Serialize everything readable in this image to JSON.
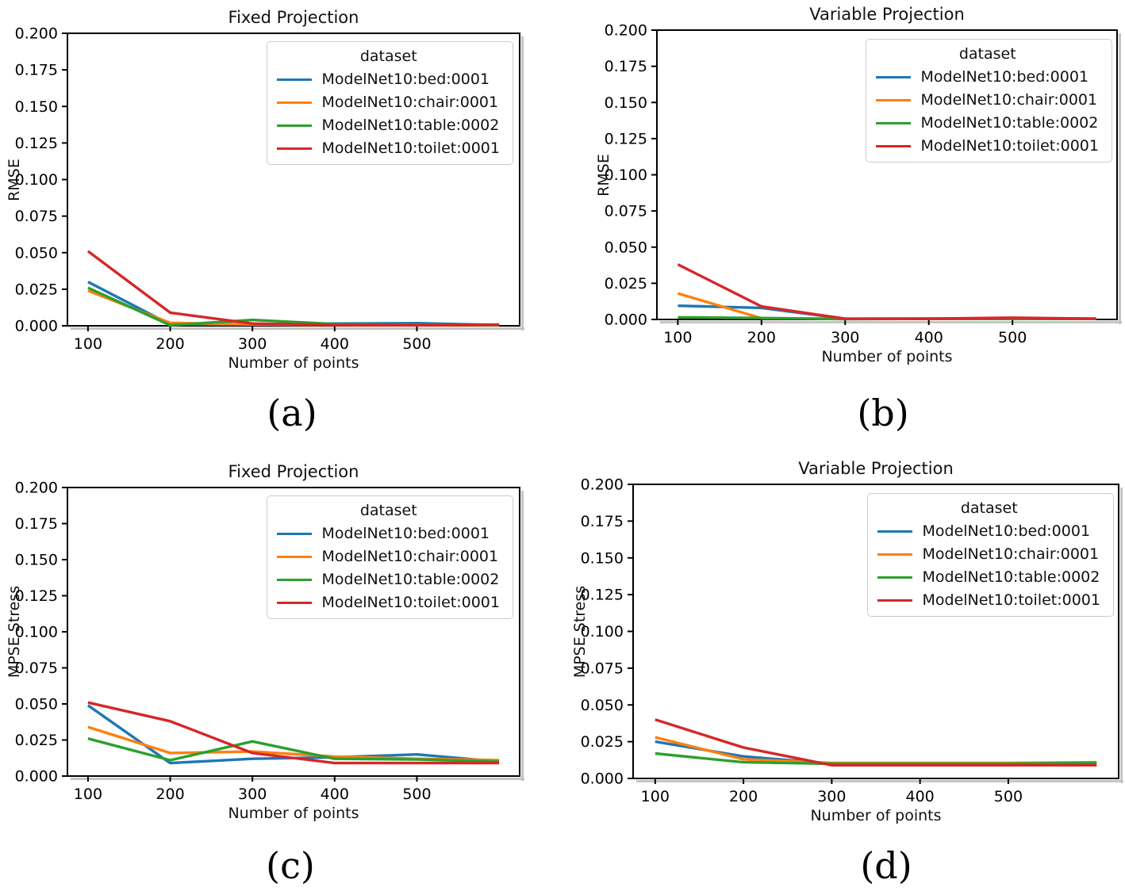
{
  "figure": {
    "background": "#ffffff",
    "text_color": "#000000",
    "spine_color": "#000000",
    "shadow_color": "#c4c4c4"
  },
  "chart_data": [
    {
      "id": "a",
      "type": "line",
      "caption": "(a)",
      "title": "Fixed Projection",
      "xlabel": "Number of points",
      "ylabel": "RMSE",
      "legend_title": "dataset",
      "legend_position": "upper right",
      "grid": false,
      "x": [
        100,
        200,
        300,
        400,
        500,
        600
      ],
      "xlim": [
        75,
        625
      ],
      "ylim": [
        0.0,
        0.2
      ],
      "xticks": [
        100,
        200,
        300,
        400,
        500
      ],
      "yticks": [
        0.0,
        0.025,
        0.05,
        0.075,
        0.1,
        0.125,
        0.15,
        0.175,
        0.2
      ],
      "series": [
        {
          "name": "ModelNet10:bed:0001",
          "color": "#1f77b4",
          "values": [
            0.03,
            0.001,
            0.001,
            0.0015,
            0.0018,
            0.0005
          ]
        },
        {
          "name": "ModelNet10:chair:0001",
          "color": "#ff7f0e",
          "values": [
            0.024,
            0.002,
            0.001,
            0.0006,
            0.0005,
            0.0005
          ]
        },
        {
          "name": "ModelNet10:table:0002",
          "color": "#2ca02c",
          "values": [
            0.026,
            0.0004,
            0.004,
            0.0012,
            0.0008,
            0.0005
          ]
        },
        {
          "name": "ModelNet10:toilet:0001",
          "color": "#d62728",
          "values": [
            0.051,
            0.009,
            0.0015,
            0.0006,
            0.0005,
            0.0008
          ]
        }
      ]
    },
    {
      "id": "b",
      "type": "line",
      "caption": "(b)",
      "title": "Variable Projection",
      "xlabel": "Number of points",
      "ylabel": "RMSE",
      "legend_title": "dataset",
      "legend_position": "upper right",
      "grid": false,
      "x": [
        100,
        200,
        300,
        400,
        500,
        600
      ],
      "xlim": [
        75,
        625
      ],
      "ylim": [
        0.0,
        0.2
      ],
      "xticks": [
        100,
        200,
        300,
        400,
        500
      ],
      "yticks": [
        0.0,
        0.025,
        0.05,
        0.075,
        0.1,
        0.125,
        0.15,
        0.175,
        0.2
      ],
      "series": [
        {
          "name": "ModelNet10:bed:0001",
          "color": "#1f77b4",
          "values": [
            0.0095,
            0.008,
            0.0005,
            0.0004,
            0.0004,
            0.0004
          ]
        },
        {
          "name": "ModelNet10:chair:0001",
          "color": "#ff7f0e",
          "values": [
            0.018,
            0.0008,
            0.0005,
            0.0007,
            0.0005,
            0.0007
          ]
        },
        {
          "name": "ModelNet10:table:0002",
          "color": "#2ca02c",
          "values": [
            0.0015,
            0.001,
            0.0003,
            0.0004,
            0.0004,
            0.0004
          ]
        },
        {
          "name": "ModelNet10:toilet:0001",
          "color": "#d62728",
          "values": [
            0.038,
            0.009,
            0.0005,
            0.0005,
            0.0012,
            0.0005
          ]
        }
      ]
    },
    {
      "id": "c",
      "type": "line",
      "caption": "(c)",
      "title": "Fixed Projection",
      "xlabel": "Number of points",
      "ylabel": "MPSE Stress",
      "legend_title": "dataset",
      "legend_position": "upper right",
      "grid": false,
      "x": [
        100,
        200,
        300,
        400,
        500,
        600
      ],
      "xlim": [
        75,
        625
      ],
      "ylim": [
        0.0,
        0.2
      ],
      "xticks": [
        100,
        200,
        300,
        400,
        500
      ],
      "yticks": [
        0.0,
        0.025,
        0.05,
        0.075,
        0.1,
        0.125,
        0.15,
        0.175,
        0.2
      ],
      "series": [
        {
          "name": "ModelNet10:bed:0001",
          "color": "#1f77b4",
          "values": [
            0.049,
            0.009,
            0.012,
            0.013,
            0.015,
            0.01
          ]
        },
        {
          "name": "ModelNet10:chair:0001",
          "color": "#ff7f0e",
          "values": [
            0.034,
            0.016,
            0.017,
            0.0135,
            0.012,
            0.011
          ]
        },
        {
          "name": "ModelNet10:table:0002",
          "color": "#2ca02c",
          "values": [
            0.026,
            0.011,
            0.024,
            0.012,
            0.0115,
            0.01
          ]
        },
        {
          "name": "ModelNet10:toilet:0001",
          "color": "#d62728",
          "values": [
            0.051,
            0.038,
            0.016,
            0.009,
            0.009,
            0.009
          ]
        }
      ]
    },
    {
      "id": "d",
      "type": "line",
      "caption": "(d)",
      "title": "Variable Projection",
      "xlabel": "Number of points",
      "ylabel": "MPSE Stress",
      "legend_title": "dataset",
      "legend_position": "upper right",
      "grid": false,
      "x": [
        100,
        200,
        300,
        400,
        500,
        600
      ],
      "xlim": [
        75,
        625
      ],
      "ylim": [
        0.0,
        0.2
      ],
      "xticks": [
        100,
        200,
        300,
        400,
        500
      ],
      "yticks": [
        0.0,
        0.025,
        0.05,
        0.075,
        0.1,
        0.125,
        0.15,
        0.175,
        0.2
      ],
      "series": [
        {
          "name": "ModelNet10:bed:0001",
          "color": "#1f77b4",
          "values": [
            0.025,
            0.015,
            0.01,
            0.01,
            0.01,
            0.01
          ]
        },
        {
          "name": "ModelNet10:chair:0001",
          "color": "#ff7f0e",
          "values": [
            0.028,
            0.013,
            0.0105,
            0.0105,
            0.0105,
            0.011
          ]
        },
        {
          "name": "ModelNet10:table:0002",
          "color": "#2ca02c",
          "values": [
            0.017,
            0.011,
            0.01,
            0.01,
            0.01,
            0.0105
          ]
        },
        {
          "name": "ModelNet10:toilet:0001",
          "color": "#d62728",
          "values": [
            0.04,
            0.021,
            0.009,
            0.009,
            0.009,
            0.009
          ]
        }
      ]
    }
  ]
}
